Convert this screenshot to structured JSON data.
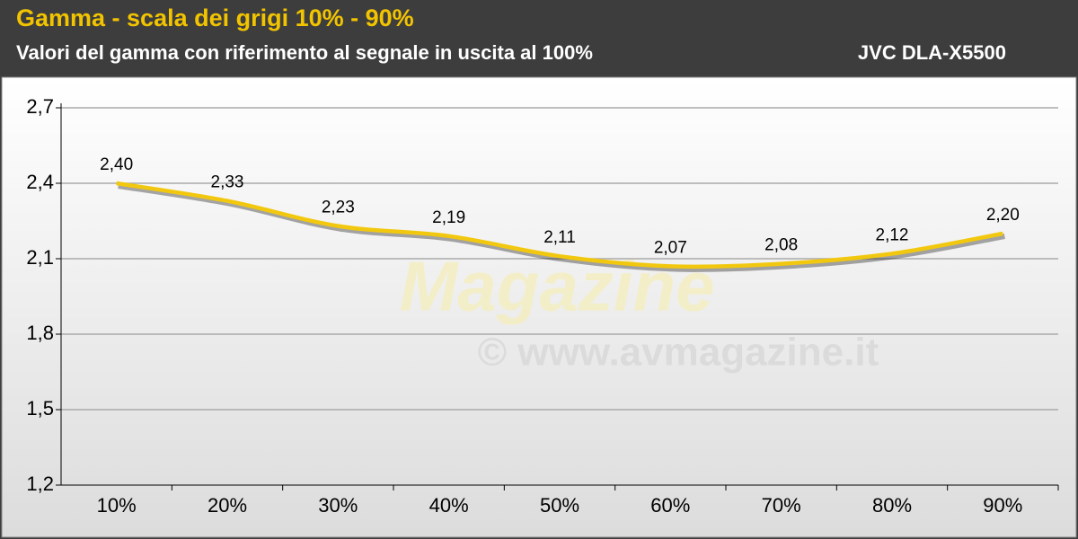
{
  "chart_data": {
    "type": "line",
    "title": "Gamma - scala dei grigi 10% - 90%",
    "subtitle": "Valori del gamma con riferimento al segnale in uscita al 100%",
    "model": "JVC DLA-X5500",
    "watermark": "© www.avmagazine.it",
    "logo_text": "Magazine",
    "categories": [
      "10%",
      "20%",
      "30%",
      "40%",
      "50%",
      "60%",
      "70%",
      "80%",
      "90%"
    ],
    "series": [
      {
        "color": "#f2c80f",
        "values": [
          2.4,
          2.33,
          2.23,
          2.19,
          2.11,
          2.07,
          2.08,
          2.12,
          2.2
        ],
        "value_labels": [
          "2,40",
          "2,33",
          "2,23",
          "2,19",
          "2,11",
          "2,07",
          "2,08",
          "2,12",
          "2,20"
        ]
      }
    ],
    "ylim": [
      1.2,
      2.7
    ],
    "yticks": [
      {
        "value": 1.2,
        "label": "1,2"
      },
      {
        "value": 1.5,
        "label": "1,5"
      },
      {
        "value": 1.8,
        "label": "1,8"
      },
      {
        "value": 2.1,
        "label": "2,1"
      },
      {
        "value": 2.4,
        "label": "2,4"
      },
      {
        "value": 2.7,
        "label": "2,7"
      }
    ],
    "grid": true
  }
}
